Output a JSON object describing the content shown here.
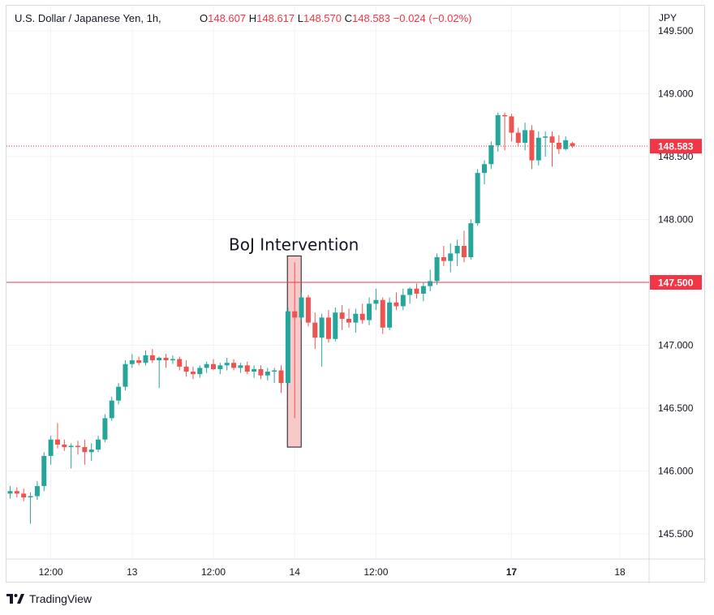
{
  "header": {
    "symbol": "U.S. Dollar / Japanese Yen, 1h,",
    "o_label": "O",
    "o_value": "148.607",
    "h_label": "H",
    "h_value": "148.617",
    "l_label": "L",
    "l_value": "148.570",
    "c_label": "C",
    "c_value": "148.583",
    "change": "−0.024 (−0.02%)"
  },
  "currency": "JPY",
  "brand": "TradingView",
  "colors": {
    "up": "#26a69a",
    "down": "#ef5350",
    "line": "#f23645",
    "annotation_fill": "#f8c9c9"
  },
  "chart_data": {
    "type": "candlestick",
    "title": "U.S. Dollar / Japanese Yen, 1h",
    "ylabel": "JPY",
    "ylim": [
      145.3,
      149.7
    ],
    "y_ticks": [
      "149.500",
      "149.000",
      "148.500",
      "148.000",
      "147.500",
      "147.000",
      "146.500",
      "146.000",
      "145.500"
    ],
    "x_ticks": [
      {
        "label": "12:00",
        "i": 6,
        "bold": false
      },
      {
        "label": "13",
        "i": 18,
        "bold": false
      },
      {
        "label": "12:00",
        "i": 30,
        "bold": false
      },
      {
        "label": "14",
        "i": 42,
        "bold": false
      },
      {
        "label": "12:00",
        "i": 54,
        "bold": false
      },
      {
        "label": "17",
        "i": 74,
        "bold": true
      },
      {
        "label": "18",
        "i": 90,
        "bold": false
      }
    ],
    "candles": [
      [
        145.82,
        145.88,
        145.78,
        145.84
      ],
      [
        145.84,
        145.87,
        145.79,
        145.82
      ],
      [
        145.82,
        145.86,
        145.76,
        145.79
      ],
      [
        145.79,
        145.83,
        145.58,
        145.8
      ],
      [
        145.8,
        145.92,
        145.77,
        145.88
      ],
      [
        145.88,
        146.15,
        145.84,
        146.12
      ],
      [
        146.12,
        146.28,
        146.05,
        146.25
      ],
      [
        146.25,
        146.38,
        146.18,
        146.21
      ],
      [
        146.21,
        146.25,
        146.16,
        146.19
      ],
      [
        146.19,
        146.22,
        146.02,
        146.2
      ],
      [
        146.2,
        146.24,
        146.13,
        146.19
      ],
      [
        146.19,
        146.25,
        146.05,
        146.15
      ],
      [
        146.15,
        146.22,
        146.08,
        146.17
      ],
      [
        146.17,
        146.28,
        146.15,
        146.25
      ],
      [
        146.25,
        146.45,
        146.23,
        146.42
      ],
      [
        146.42,
        146.59,
        146.4,
        146.56
      ],
      [
        146.56,
        146.7,
        146.53,
        146.67
      ],
      [
        146.67,
        146.88,
        146.64,
        146.85
      ],
      [
        146.85,
        146.93,
        146.82,
        146.88
      ],
      [
        146.88,
        146.91,
        146.84,
        146.86
      ],
      [
        146.86,
        146.96,
        146.84,
        146.92
      ],
      [
        146.92,
        146.97,
        146.86,
        146.88
      ],
      [
        146.88,
        146.91,
        146.66,
        146.9
      ],
      [
        146.9,
        146.93,
        146.82,
        146.88
      ],
      [
        146.88,
        146.92,
        146.85,
        146.89
      ],
      [
        146.89,
        146.91,
        146.8,
        146.83
      ],
      [
        146.83,
        146.88,
        146.75,
        146.79
      ],
      [
        146.79,
        146.83,
        146.73,
        146.77
      ],
      [
        146.77,
        146.84,
        146.74,
        146.82
      ],
      [
        146.82,
        146.87,
        146.78,
        146.85
      ],
      [
        146.85,
        146.89,
        146.8,
        146.81
      ],
      [
        146.81,
        146.86,
        146.77,
        146.84
      ],
      [
        146.84,
        146.9,
        146.8,
        146.86
      ],
      [
        146.86,
        146.89,
        146.8,
        146.82
      ],
      [
        146.82,
        146.86,
        146.78,
        146.84
      ],
      [
        146.84,
        146.87,
        146.77,
        146.79
      ],
      [
        146.79,
        146.84,
        146.74,
        146.81
      ],
      [
        146.81,
        146.84,
        146.73,
        146.76
      ],
      [
        146.76,
        146.82,
        146.72,
        146.79
      ],
      [
        146.79,
        146.82,
        146.7,
        146.8
      ],
      [
        146.8,
        146.84,
        146.62,
        146.7
      ],
      [
        146.7,
        147.3,
        146.68,
        147.27
      ],
      [
        147.27,
        147.66,
        146.42,
        147.22
      ],
      [
        147.22,
        147.42,
        147.2,
        147.38
      ],
      [
        147.38,
        147.4,
        147.15,
        147.18
      ],
      [
        147.18,
        147.26,
        146.97,
        147.06
      ],
      [
        147.06,
        147.25,
        146.83,
        147.22
      ],
      [
        147.22,
        147.28,
        147.02,
        147.05
      ],
      [
        147.05,
        147.3,
        147.03,
        147.26
      ],
      [
        147.26,
        147.32,
        147.12,
        147.21
      ],
      [
        147.21,
        147.29,
        147.14,
        147.18
      ],
      [
        147.18,
        147.29,
        147.1,
        147.25
      ],
      [
        147.25,
        147.33,
        147.17,
        147.2
      ],
      [
        147.2,
        147.38,
        147.16,
        147.33
      ],
      [
        147.33,
        147.45,
        147.28,
        147.36
      ],
      [
        147.36,
        147.38,
        147.09,
        147.14
      ],
      [
        147.14,
        147.38,
        147.12,
        147.34
      ],
      [
        147.34,
        147.42,
        147.28,
        147.31
      ],
      [
        147.31,
        147.45,
        147.28,
        147.4
      ],
      [
        147.4,
        147.46,
        147.33,
        147.45
      ],
      [
        147.45,
        147.49,
        147.37,
        147.41
      ],
      [
        147.41,
        147.5,
        147.35,
        147.47
      ],
      [
        147.47,
        147.6,
        147.43,
        147.51
      ],
      [
        147.51,
        147.73,
        147.48,
        147.7
      ],
      [
        147.7,
        147.79,
        147.63,
        147.67
      ],
      [
        147.67,
        147.81,
        147.58,
        147.73
      ],
      [
        147.73,
        147.84,
        147.63,
        147.79
      ],
      [
        147.79,
        147.91,
        147.66,
        147.7
      ],
      [
        147.7,
        148.0,
        147.68,
        147.97
      ],
      [
        147.97,
        148.4,
        147.95,
        148.37
      ],
      [
        148.37,
        148.47,
        148.28,
        148.44
      ],
      [
        148.44,
        148.62,
        148.4,
        148.59
      ],
      [
        148.59,
        148.85,
        148.54,
        148.83
      ],
      [
        148.83,
        148.85,
        148.55,
        148.82
      ],
      [
        148.82,
        148.84,
        148.62,
        148.69
      ],
      [
        148.69,
        148.73,
        148.58,
        148.61
      ],
      [
        148.61,
        148.77,
        148.55,
        148.71
      ],
      [
        148.71,
        148.75,
        148.4,
        148.47
      ],
      [
        148.47,
        148.7,
        148.43,
        148.65
      ],
      [
        148.65,
        148.7,
        148.5,
        148.66
      ],
      [
        148.66,
        148.7,
        148.42,
        148.61
      ],
      [
        148.61,
        148.67,
        148.52,
        148.56
      ],
      [
        148.56,
        148.66,
        148.55,
        148.63
      ],
      [
        148.607,
        148.617,
        148.57,
        148.583
      ]
    ],
    "last_price": {
      "value": 148.583,
      "label": "148.583"
    },
    "level_line": {
      "value": 147.5,
      "label": "147.500"
    },
    "annotation": {
      "text": "BoJ Intervention",
      "candle_index": 42,
      "top": 147.71,
      "bottom": 146.19
    }
  }
}
